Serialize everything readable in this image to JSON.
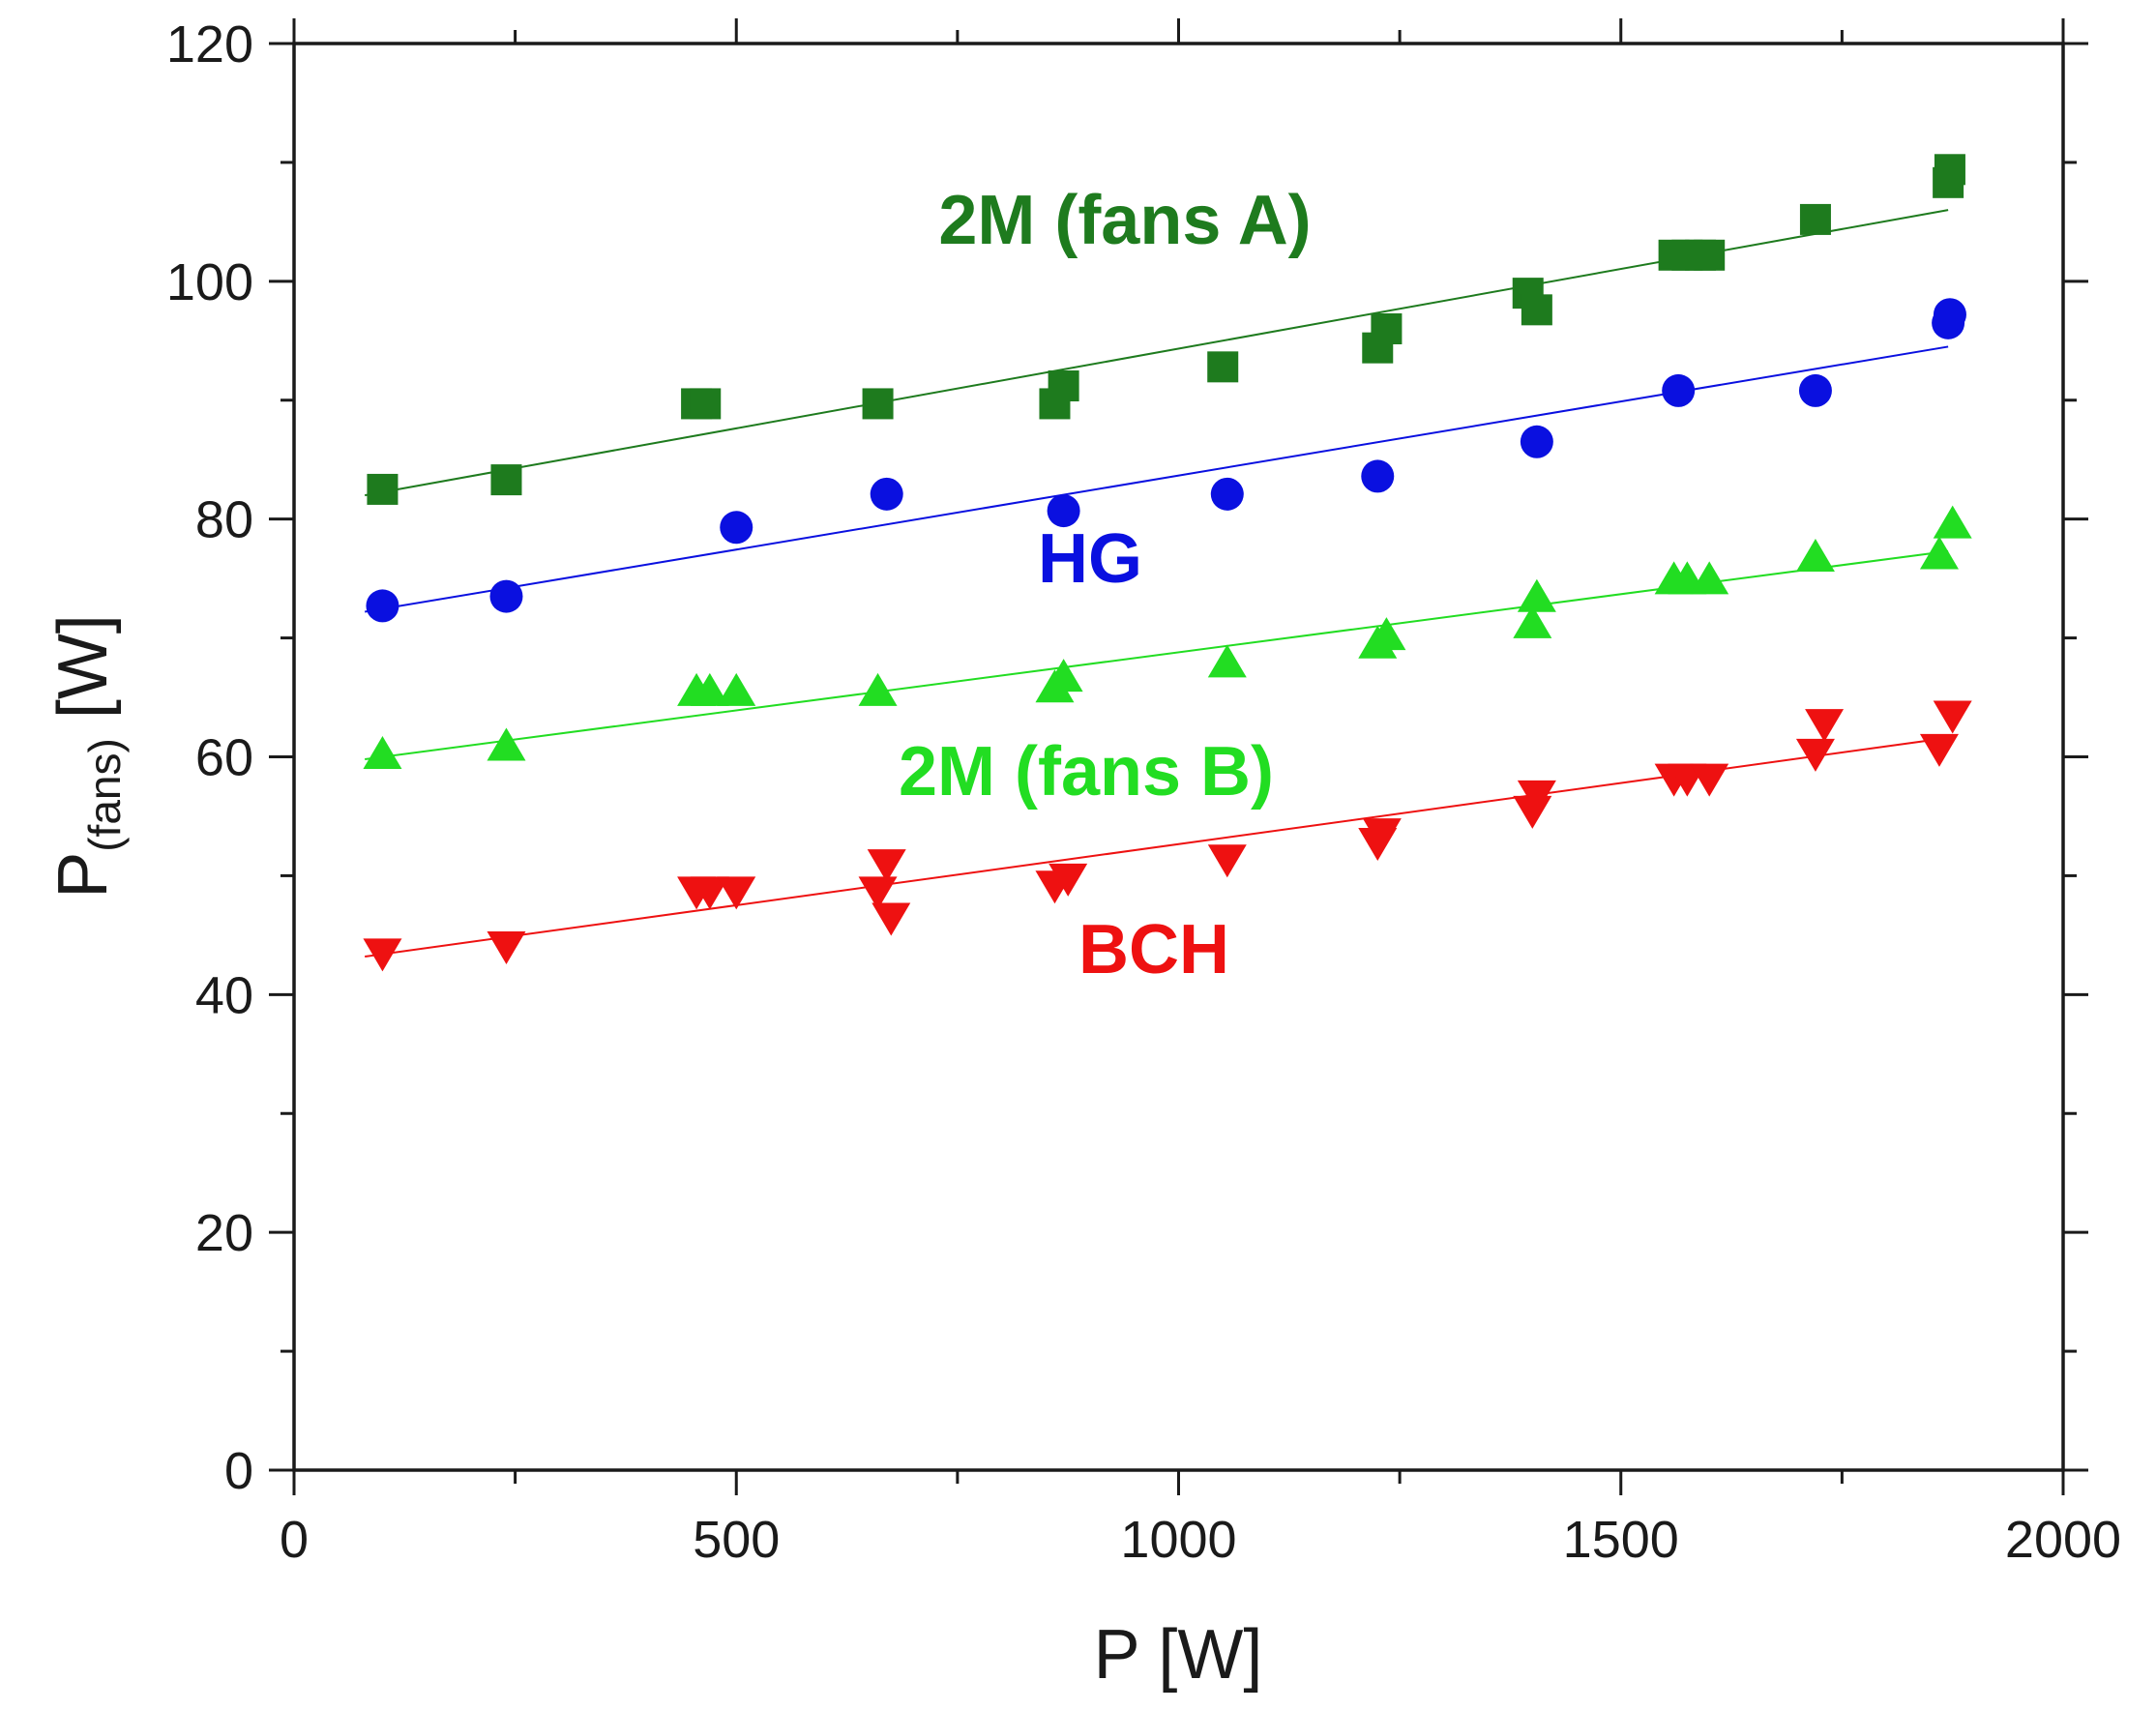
{
  "chart_data": {
    "type": "scatter",
    "title": "",
    "xlabel": "P [W]",
    "ylabel": {
      "main": "P",
      "subscript": "(fans)",
      "suffix": " [W]"
    },
    "xlim": [
      0,
      2000
    ],
    "ylim": [
      0,
      120
    ],
    "x_major_ticks": [
      0,
      500,
      1000,
      1500,
      2000
    ],
    "y_major_ticks": [
      0,
      20,
      40,
      60,
      80,
      100,
      120
    ],
    "x_tick_labels": [
      "0",
      "500",
      "1000",
      "1500",
      "2000"
    ],
    "y_tick_labels": [
      "0",
      "20",
      "40",
      "60",
      "80",
      "100",
      "120"
    ],
    "grid": false,
    "legend": "none (series labelled inline)",
    "series": [
      {
        "name": "2M (fans A)",
        "color": "#1e7b1e",
        "marker": "square-icon",
        "x": [
          100,
          240,
          455,
          465,
          660,
          860,
          870,
          1050,
          1225,
          1235,
          1395,
          1405,
          1560,
          1575,
          1590,
          1600,
          1720,
          1870,
          1872
        ],
        "y": [
          82.5,
          83.3,
          89.7,
          89.7,
          89.7,
          89.7,
          91.2,
          92.8,
          94.4,
          96.0,
          99.0,
          97.6,
          102.2,
          102.2,
          102.2,
          102.2,
          105.2,
          108.3,
          109.4
        ],
        "fit": {
          "x": [
            80,
            1870
          ],
          "y": [
            82.0,
            106.0
          ]
        }
      },
      {
        "name": "HG",
        "color": "#0a10e0",
        "marker": "circle-icon",
        "x": [
          100,
          240,
          500,
          670,
          870,
          1055,
          1225,
          1405,
          1565,
          1720,
          1870,
          1872
        ],
        "y": [
          72.7,
          73.5,
          79.3,
          82.1,
          80.7,
          82.1,
          83.6,
          86.5,
          90.8,
          90.8,
          96.5,
          97.2
        ],
        "fit": {
          "x": [
            80,
            1870
          ],
          "y": [
            72.2,
            94.5
          ]
        }
      },
      {
        "name": "2M (fans B)",
        "color": "#22dd22",
        "marker": "triangle-up-icon",
        "x": [
          100,
          240,
          455,
          470,
          500,
          660,
          860,
          870,
          1055,
          1225,
          1235,
          1400,
          1405,
          1560,
          1575,
          1600,
          1720,
          1860,
          1875
        ],
        "y": [
          60.2,
          60.9,
          65.5,
          65.5,
          65.5,
          65.5,
          65.8,
          66.7,
          67.9,
          69.5,
          70.2,
          71.2,
          73.4,
          74.9,
          74.9,
          74.9,
          76.8,
          77.0,
          79.6
        ],
        "fit": {
          "x": [
            80,
            1870
          ],
          "y": [
            59.8,
            77.3
          ]
        }
      },
      {
        "name": "BCH",
        "color": "#ee1111",
        "marker": "triangle-down-icon",
        "x": [
          100,
          240,
          455,
          470,
          500,
          660,
          670,
          675,
          860,
          875,
          1055,
          1225,
          1230,
          1400,
          1405,
          1560,
          1575,
          1600,
          1720,
          1730,
          1860,
          1875
        ],
        "y": [
          43.5,
          44.1,
          48.7,
          48.7,
          48.7,
          48.7,
          51.0,
          46.5,
          49.2,
          49.8,
          51.4,
          52.8,
          53.6,
          55.5,
          56.8,
          58.2,
          58.2,
          58.2,
          60.3,
          62.8,
          60.7,
          63.5
        ],
        "fit": {
          "x": [
            80,
            1870
          ],
          "y": [
            43.2,
            61.6
          ]
        }
      }
    ]
  }
}
